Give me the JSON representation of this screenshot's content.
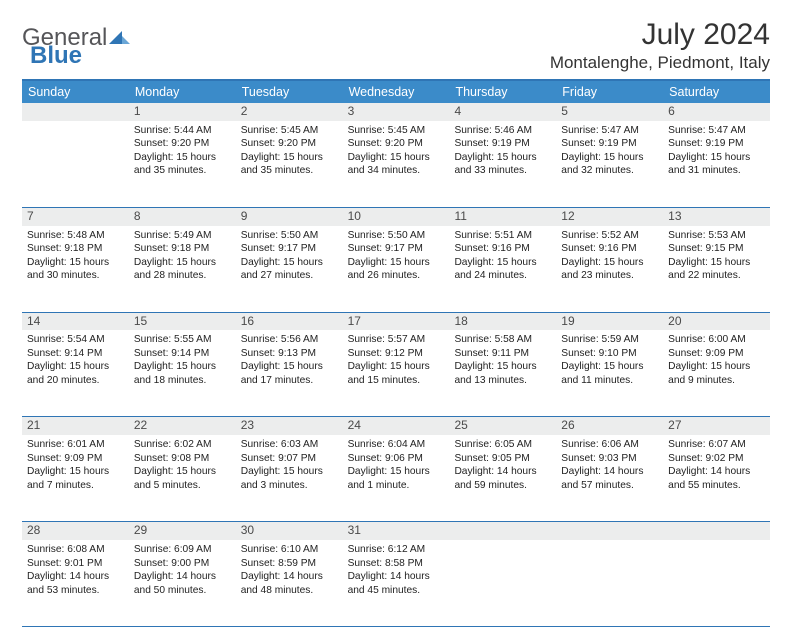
{
  "brand": {
    "general": "General",
    "blue": "Blue"
  },
  "title": "July 2024",
  "location": "Montalenghe, Piedmont, Italy",
  "colors": {
    "header_bg": "#3b8bc9",
    "border": "#2f75b5",
    "daynum_bg": "#eceded",
    "text": "#222222"
  },
  "daysOfWeek": [
    "Sunday",
    "Monday",
    "Tuesday",
    "Wednesday",
    "Thursday",
    "Friday",
    "Saturday"
  ],
  "weeks": [
    [
      null,
      {
        "n": "1",
        "sr": "Sunrise: 5:44 AM",
        "ss": "Sunset: 9:20 PM",
        "d1": "Daylight: 15 hours",
        "d2": "and 35 minutes."
      },
      {
        "n": "2",
        "sr": "Sunrise: 5:45 AM",
        "ss": "Sunset: 9:20 PM",
        "d1": "Daylight: 15 hours",
        "d2": "and 35 minutes."
      },
      {
        "n": "3",
        "sr": "Sunrise: 5:45 AM",
        "ss": "Sunset: 9:20 PM",
        "d1": "Daylight: 15 hours",
        "d2": "and 34 minutes."
      },
      {
        "n": "4",
        "sr": "Sunrise: 5:46 AM",
        "ss": "Sunset: 9:19 PM",
        "d1": "Daylight: 15 hours",
        "d2": "and 33 minutes."
      },
      {
        "n": "5",
        "sr": "Sunrise: 5:47 AM",
        "ss": "Sunset: 9:19 PM",
        "d1": "Daylight: 15 hours",
        "d2": "and 32 minutes."
      },
      {
        "n": "6",
        "sr": "Sunrise: 5:47 AM",
        "ss": "Sunset: 9:19 PM",
        "d1": "Daylight: 15 hours",
        "d2": "and 31 minutes."
      }
    ],
    [
      {
        "n": "7",
        "sr": "Sunrise: 5:48 AM",
        "ss": "Sunset: 9:18 PM",
        "d1": "Daylight: 15 hours",
        "d2": "and 30 minutes."
      },
      {
        "n": "8",
        "sr": "Sunrise: 5:49 AM",
        "ss": "Sunset: 9:18 PM",
        "d1": "Daylight: 15 hours",
        "d2": "and 28 minutes."
      },
      {
        "n": "9",
        "sr": "Sunrise: 5:50 AM",
        "ss": "Sunset: 9:17 PM",
        "d1": "Daylight: 15 hours",
        "d2": "and 27 minutes."
      },
      {
        "n": "10",
        "sr": "Sunrise: 5:50 AM",
        "ss": "Sunset: 9:17 PM",
        "d1": "Daylight: 15 hours",
        "d2": "and 26 minutes."
      },
      {
        "n": "11",
        "sr": "Sunrise: 5:51 AM",
        "ss": "Sunset: 9:16 PM",
        "d1": "Daylight: 15 hours",
        "d2": "and 24 minutes."
      },
      {
        "n": "12",
        "sr": "Sunrise: 5:52 AM",
        "ss": "Sunset: 9:16 PM",
        "d1": "Daylight: 15 hours",
        "d2": "and 23 minutes."
      },
      {
        "n": "13",
        "sr": "Sunrise: 5:53 AM",
        "ss": "Sunset: 9:15 PM",
        "d1": "Daylight: 15 hours",
        "d2": "and 22 minutes."
      }
    ],
    [
      {
        "n": "14",
        "sr": "Sunrise: 5:54 AM",
        "ss": "Sunset: 9:14 PM",
        "d1": "Daylight: 15 hours",
        "d2": "and 20 minutes."
      },
      {
        "n": "15",
        "sr": "Sunrise: 5:55 AM",
        "ss": "Sunset: 9:14 PM",
        "d1": "Daylight: 15 hours",
        "d2": "and 18 minutes."
      },
      {
        "n": "16",
        "sr": "Sunrise: 5:56 AM",
        "ss": "Sunset: 9:13 PM",
        "d1": "Daylight: 15 hours",
        "d2": "and 17 minutes."
      },
      {
        "n": "17",
        "sr": "Sunrise: 5:57 AM",
        "ss": "Sunset: 9:12 PM",
        "d1": "Daylight: 15 hours",
        "d2": "and 15 minutes."
      },
      {
        "n": "18",
        "sr": "Sunrise: 5:58 AM",
        "ss": "Sunset: 9:11 PM",
        "d1": "Daylight: 15 hours",
        "d2": "and 13 minutes."
      },
      {
        "n": "19",
        "sr": "Sunrise: 5:59 AM",
        "ss": "Sunset: 9:10 PM",
        "d1": "Daylight: 15 hours",
        "d2": "and 11 minutes."
      },
      {
        "n": "20",
        "sr": "Sunrise: 6:00 AM",
        "ss": "Sunset: 9:09 PM",
        "d1": "Daylight: 15 hours",
        "d2": "and 9 minutes."
      }
    ],
    [
      {
        "n": "21",
        "sr": "Sunrise: 6:01 AM",
        "ss": "Sunset: 9:09 PM",
        "d1": "Daylight: 15 hours",
        "d2": "and 7 minutes."
      },
      {
        "n": "22",
        "sr": "Sunrise: 6:02 AM",
        "ss": "Sunset: 9:08 PM",
        "d1": "Daylight: 15 hours",
        "d2": "and 5 minutes."
      },
      {
        "n": "23",
        "sr": "Sunrise: 6:03 AM",
        "ss": "Sunset: 9:07 PM",
        "d1": "Daylight: 15 hours",
        "d2": "and 3 minutes."
      },
      {
        "n": "24",
        "sr": "Sunrise: 6:04 AM",
        "ss": "Sunset: 9:06 PM",
        "d1": "Daylight: 15 hours",
        "d2": "and 1 minute."
      },
      {
        "n": "25",
        "sr": "Sunrise: 6:05 AM",
        "ss": "Sunset: 9:05 PM",
        "d1": "Daylight: 14 hours",
        "d2": "and 59 minutes."
      },
      {
        "n": "26",
        "sr": "Sunrise: 6:06 AM",
        "ss": "Sunset: 9:03 PM",
        "d1": "Daylight: 14 hours",
        "d2": "and 57 minutes."
      },
      {
        "n": "27",
        "sr": "Sunrise: 6:07 AM",
        "ss": "Sunset: 9:02 PM",
        "d1": "Daylight: 14 hours",
        "d2": "and 55 minutes."
      }
    ],
    [
      {
        "n": "28",
        "sr": "Sunrise: 6:08 AM",
        "ss": "Sunset: 9:01 PM",
        "d1": "Daylight: 14 hours",
        "d2": "and 53 minutes."
      },
      {
        "n": "29",
        "sr": "Sunrise: 6:09 AM",
        "ss": "Sunset: 9:00 PM",
        "d1": "Daylight: 14 hours",
        "d2": "and 50 minutes."
      },
      {
        "n": "30",
        "sr": "Sunrise: 6:10 AM",
        "ss": "Sunset: 8:59 PM",
        "d1": "Daylight: 14 hours",
        "d2": "and 48 minutes."
      },
      {
        "n": "31",
        "sr": "Sunrise: 6:12 AM",
        "ss": "Sunset: 8:58 PM",
        "d1": "Daylight: 14 hours",
        "d2": "and 45 minutes."
      },
      null,
      null,
      null
    ]
  ]
}
